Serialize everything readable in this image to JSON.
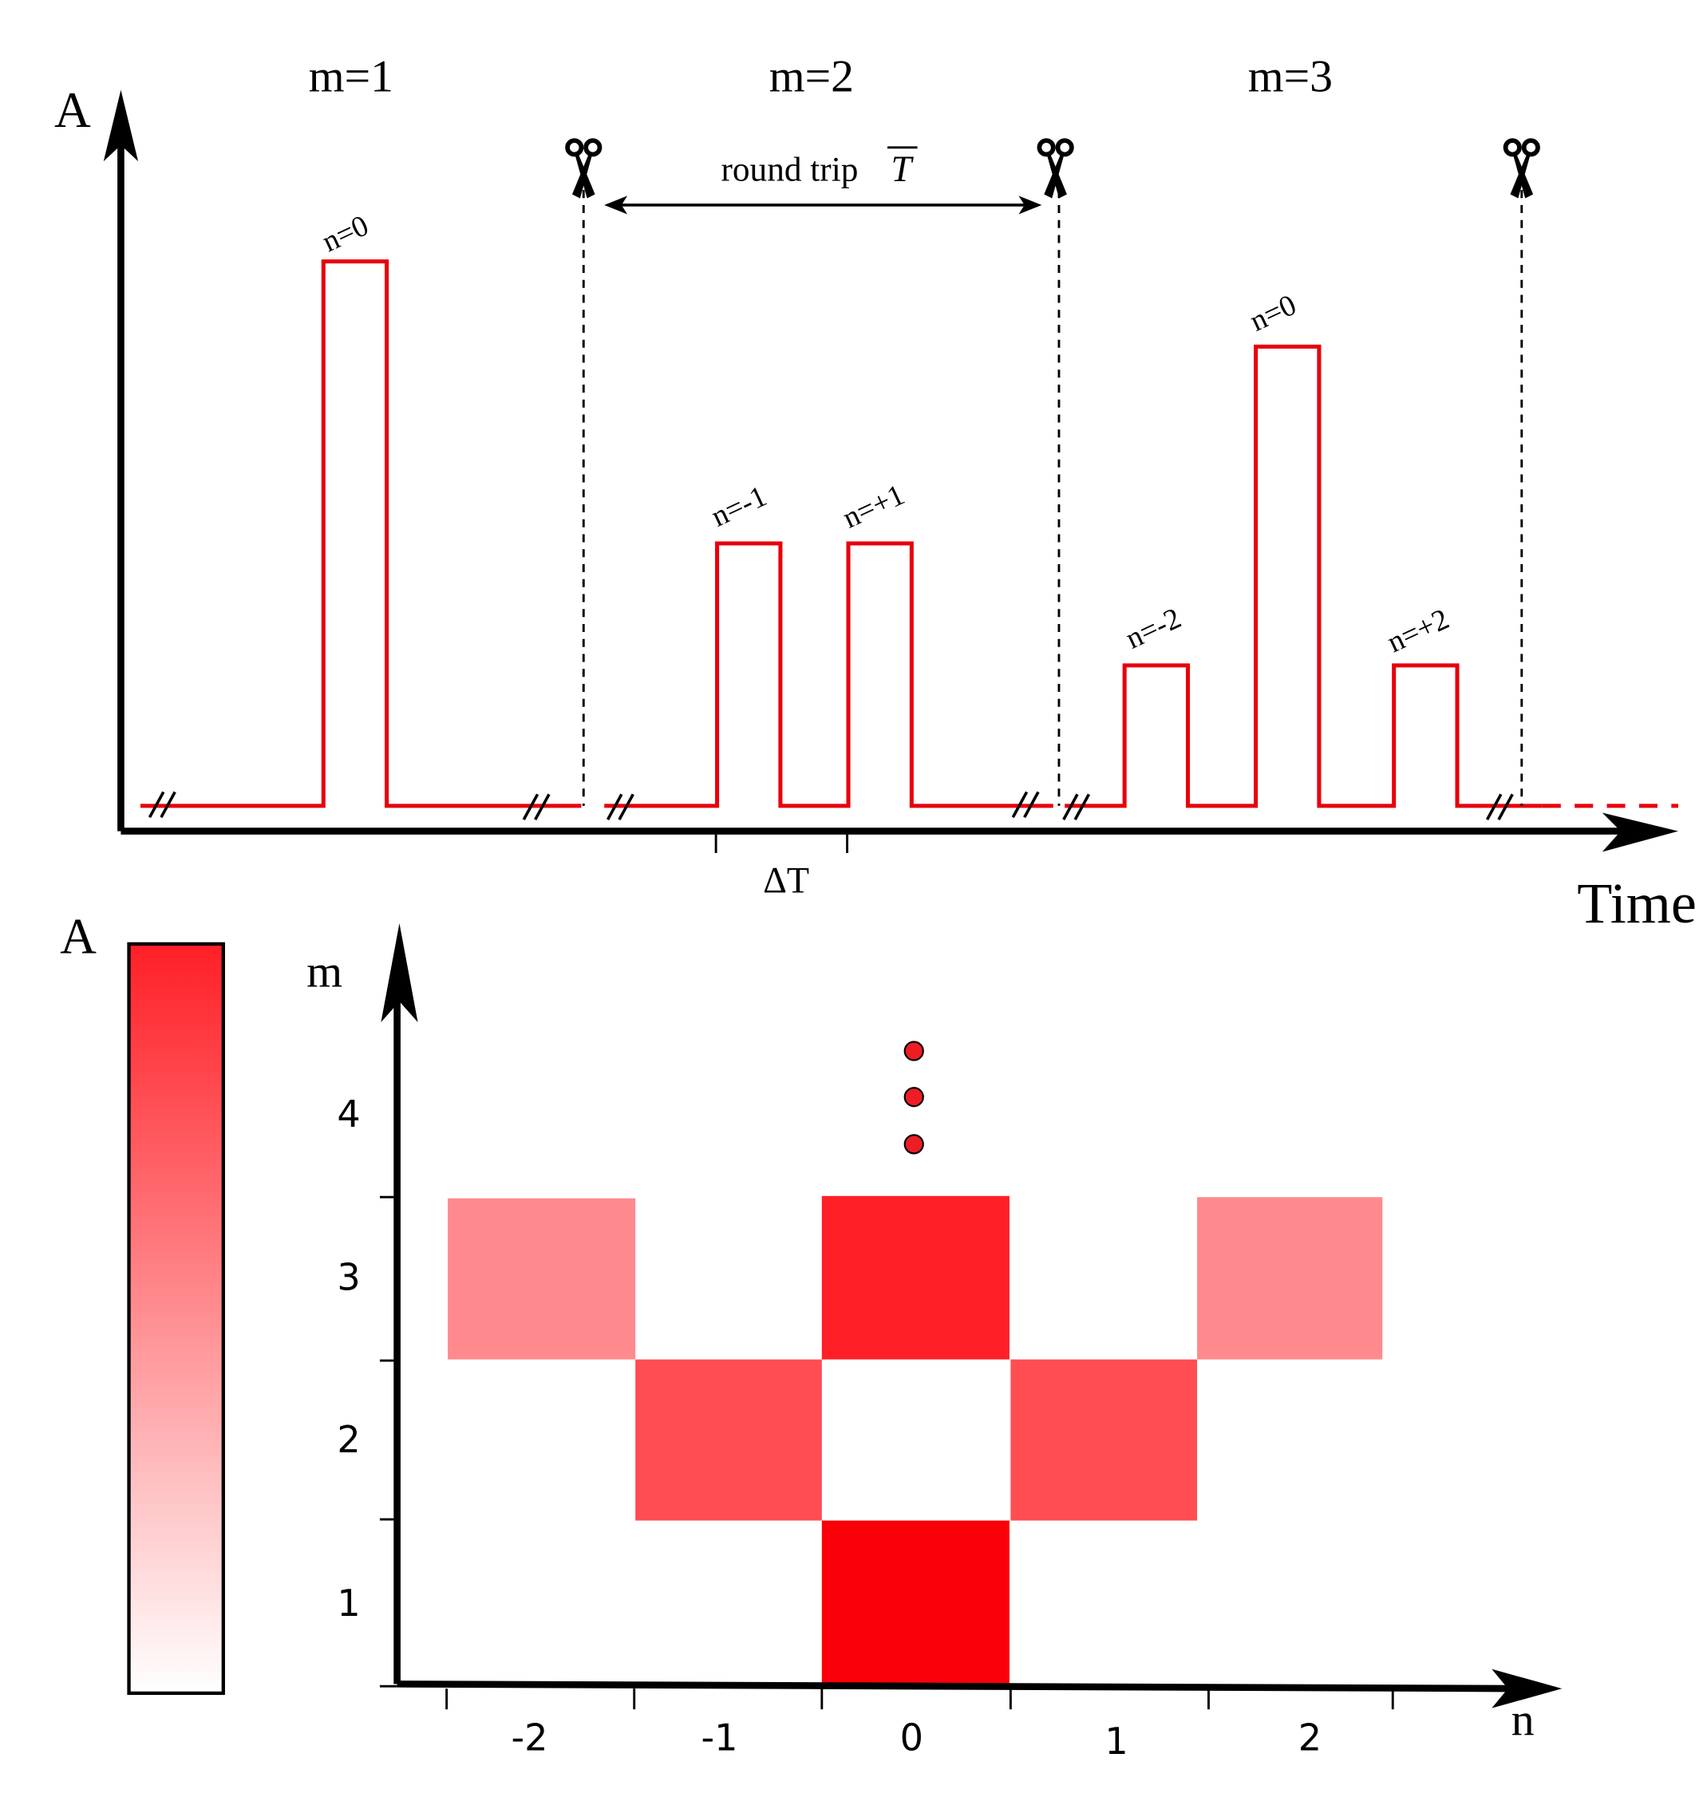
{
  "top_panel": {
    "y_axis_label": "A",
    "x_axis_label": "Time",
    "segments": [
      "m=1",
      "m=2",
      "m=3"
    ],
    "round_trip": {
      "label": "round trip",
      "symbol": "T"
    },
    "pulse_labels": [
      "n=0",
      "n=-1",
      "n=+1",
      "n=-2",
      "n=0",
      "n=+2"
    ],
    "delta_label": "ΔT"
  },
  "bottom_panel": {
    "colorbar_label": "A",
    "y_axis_label": "m",
    "x_axis_label": "n",
    "yticks": [
      "1",
      "2",
      "3",
      "4"
    ],
    "xticks": [
      "-2",
      "-1",
      "0",
      "1",
      "2"
    ]
  }
}
